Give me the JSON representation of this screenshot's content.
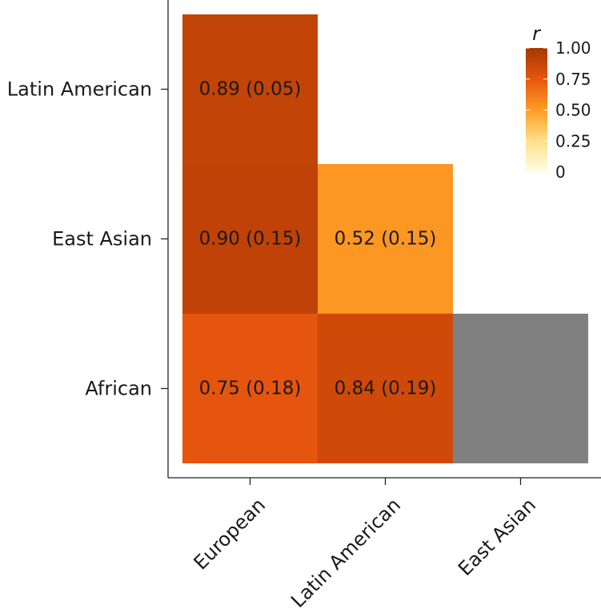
{
  "chart_data": {
    "type": "heatmap",
    "x_categories": [
      "European",
      "Latin American",
      "East Asian"
    ],
    "y_categories": [
      "African",
      "East Asian",
      "Latin American"
    ],
    "cells": [
      {
        "x": "European",
        "y": "Latin American",
        "value": 0.89,
        "label": "0.89 (0.05)"
      },
      {
        "x": "European",
        "y": "East Asian",
        "value": 0.9,
        "label": "0.90 (0.15)"
      },
      {
        "x": "Latin American",
        "y": "East Asian",
        "value": 0.52,
        "label": "0.52 (0.15)"
      },
      {
        "x": "European",
        "y": "African",
        "value": 0.75,
        "label": "0.75 (0.18)"
      },
      {
        "x": "Latin American",
        "y": "African",
        "value": 0.84,
        "label": "0.84 (0.19)"
      },
      {
        "x": "East Asian",
        "y": "African",
        "value": null,
        "label": ""
      }
    ],
    "missing_color": "#808080",
    "legend": {
      "title": "r",
      "ticks": [
        {
          "value": 1.0,
          "label": "1.00"
        },
        {
          "value": 0.75,
          "label": "0.75"
        },
        {
          "value": 0.5,
          "label": "0.50"
        },
        {
          "value": 0.25,
          "label": "0.25"
        },
        {
          "value": 0,
          "label": "0"
        }
      ],
      "range": [
        0,
        1
      ],
      "placement": "top-right",
      "gradient_colors": [
        "#fffde6",
        "#fee08b",
        "#fd9d24",
        "#e6550d",
        "#a63603"
      ]
    },
    "grid": false,
    "xlabel": "",
    "ylabel": ""
  }
}
